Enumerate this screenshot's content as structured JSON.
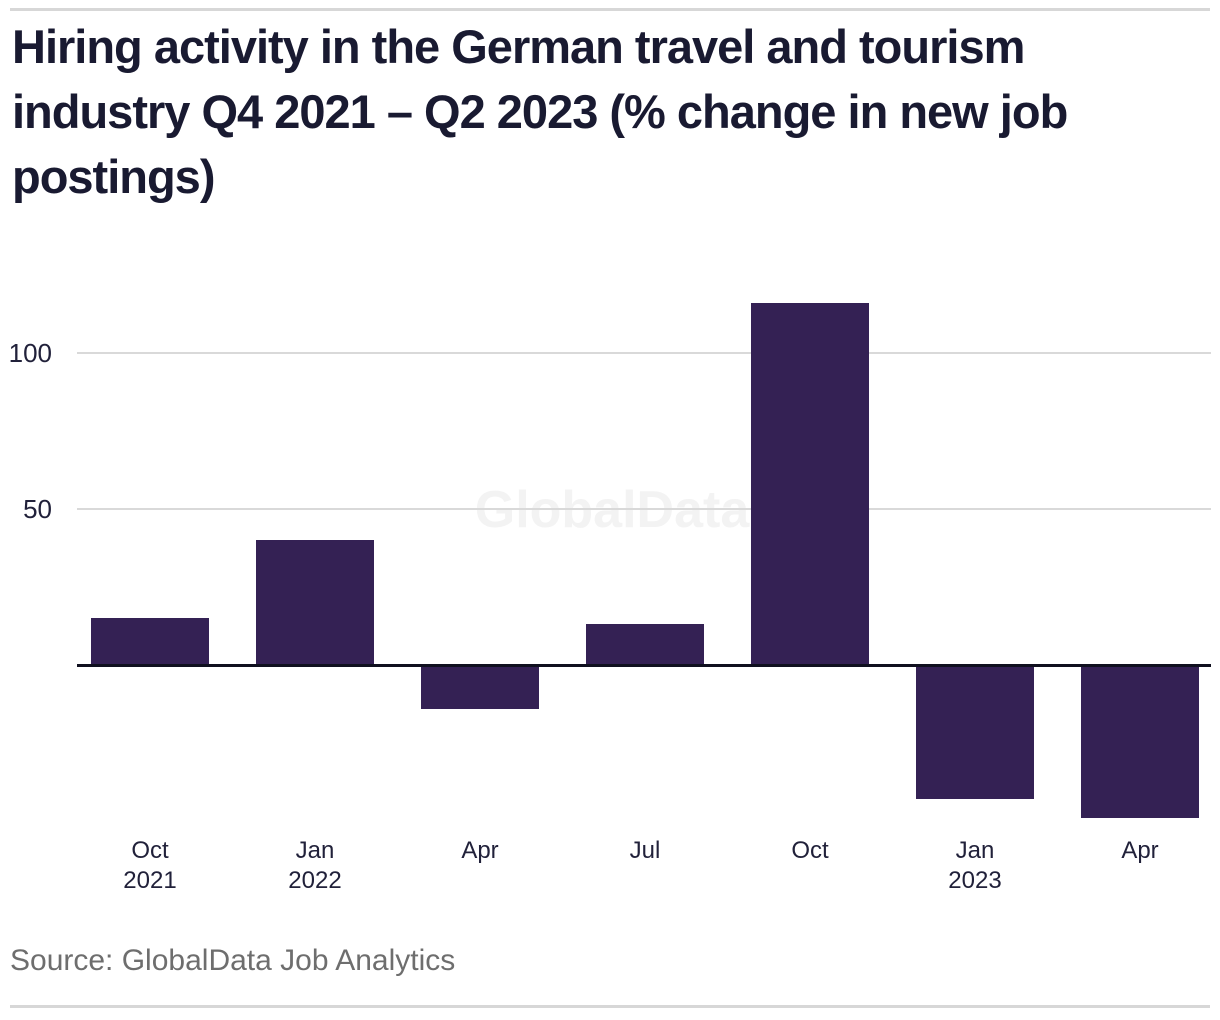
{
  "header": {
    "title": "Hiring activity in the German travel and tourism industry Q4 2021 – Q2 2023 (% change in new job postings)",
    "title_lines": [
      "Hiring activity in the German travel and tourism",
      "industry Q4 2021 – Q2 2023 (% change in new job",
      "postings)"
    ]
  },
  "chart_data": {
    "type": "bar",
    "title": "Hiring activity in the German travel and tourism industry Q4 2021 – Q2 2023 (% change in new job postings)",
    "categories": [
      "Oct 2021",
      "Jan 2022",
      "Apr 2022",
      "Jul 2022",
      "Oct 2022",
      "Jan 2023",
      "Apr 2023"
    ],
    "tick_labels": [
      [
        "Oct",
        "2021"
      ],
      [
        "Jan",
        "2022"
      ],
      [
        "Apr"
      ],
      [
        "Jul"
      ],
      [
        "Oct"
      ],
      [
        "Jan",
        "2023"
      ],
      [
        "Apr"
      ]
    ],
    "values": [
      15,
      40,
      -14,
      13,
      116,
      -43,
      -49
    ],
    "xlabel": "",
    "ylabel": "",
    "yticks": [
      50,
      100
    ],
    "ylim": [
      -60,
      125
    ],
    "grid": "horizontal-light-gray",
    "legend": "none",
    "bar_color": "#342154",
    "axis_line_color": "#10101f",
    "watermark": "GlobalData"
  },
  "footer": {
    "source": "Source: GlobalData Job Analytics"
  }
}
